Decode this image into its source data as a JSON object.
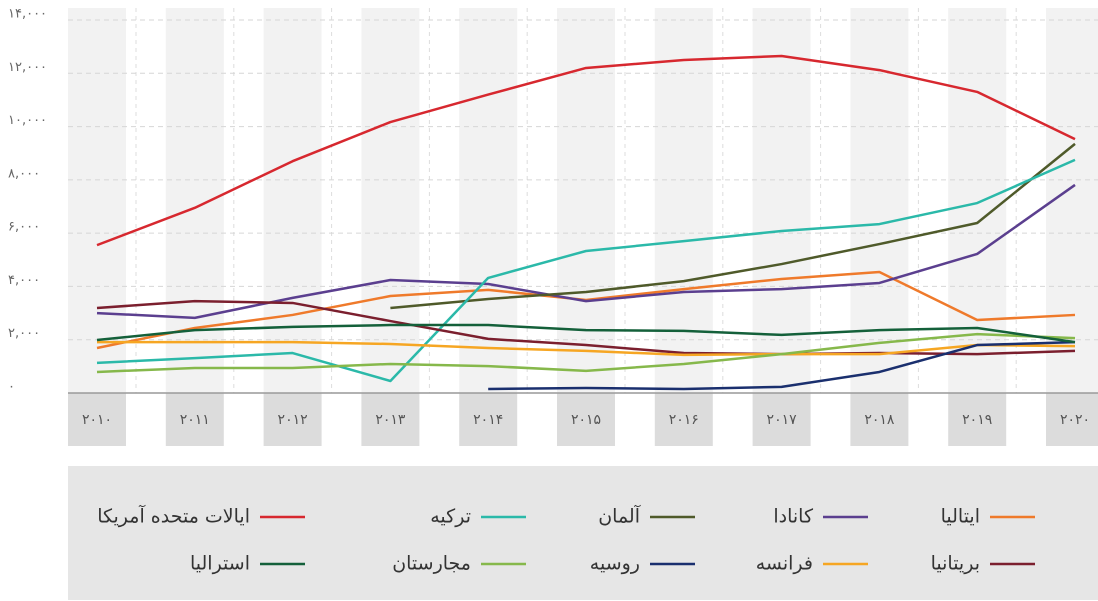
{
  "chart_data": {
    "type": "line",
    "categories": [
      "۲۰۱۰",
      "۲۰۱۱",
      "۲۰۱۲",
      "۲۰۱۳",
      "۲۰۱۴",
      "۲۰۱۵",
      "۲۰۱۶",
      "۲۰۱۷",
      "۲۰۱۸",
      "۲۰۱۹",
      "۲۰۲۰"
    ],
    "ylim": [
      0,
      14000
    ],
    "yticks": [
      {
        "value": 0,
        "label": "۰"
      },
      {
        "value": 2000,
        "label": "۲,۰۰۰"
      },
      {
        "value": 4000,
        "label": "۴,۰۰۰"
      },
      {
        "value": 6000,
        "label": "۶,۰۰۰"
      },
      {
        "value": 8000,
        "label": "۸,۰۰۰"
      },
      {
        "value": 10000,
        "label": "۱۰,۰۰۰"
      },
      {
        "value": 12000,
        "label": "۱۲,۰۰۰"
      },
      {
        "value": 14000,
        "label": "۱۴,۰۰۰"
      }
    ],
    "grid": true,
    "series": [
      {
        "name": "ایتالیا",
        "color": "#ef7a2b",
        "values": [
          1690,
          2440,
          2930,
          3640,
          3870,
          3490,
          3900,
          4280,
          4540,
          2740,
          2930
        ]
      },
      {
        "name": "کانادا",
        "color": "#5b3f8f",
        "values": [
          3000,
          2820,
          3570,
          4240,
          4090,
          3450,
          3790,
          3900,
          4130,
          5220,
          7810
        ]
      },
      {
        "name": "آلمان",
        "color": "#4f5a2a",
        "values": [
          null,
          null,
          null,
          3190,
          3530,
          3790,
          4200,
          4840,
          5590,
          6380,
          9350
        ]
      },
      {
        "name": "ترکیه",
        "color": "#2bb9a9",
        "values": [
          1130,
          1310,
          1500,
          450,
          4320,
          5330,
          5700,
          6080,
          6340,
          7130,
          8750
        ]
      },
      {
        "name": "ایالات متحده آمریکا",
        "color": "#d7282f",
        "values": [
          5550,
          6950,
          8700,
          10170,
          11200,
          12200,
          12500,
          12650,
          12120,
          11300,
          9530
        ]
      },
      {
        "name": "بریتانیا",
        "color": "#7b1f2e",
        "values": [
          3190,
          3450,
          3380,
          2700,
          2030,
          1800,
          1500,
          1460,
          1500,
          1460,
          1580
        ]
      },
      {
        "name": "فرانسه",
        "color": "#f6a623",
        "values": [
          1910,
          1910,
          1910,
          1840,
          1690,
          1580,
          1430,
          1460,
          1460,
          1800,
          1760
        ]
      },
      {
        "name": "روسیه",
        "color": "#1a2f6e",
        "values": [
          null,
          null,
          null,
          null,
          150,
          190,
          150,
          230,
          790,
          1800,
          1910
        ]
      },
      {
        "name": "مجارستان",
        "color": "#86b84b",
        "values": [
          790,
          940,
          940,
          1090,
          1010,
          830,
          1090,
          1460,
          1880,
          2210,
          2060
        ]
      },
      {
        "name": "استرالیا",
        "color": "#14603a",
        "values": [
          1990,
          2360,
          2480,
          2550,
          2550,
          2360,
          2330,
          2180,
          2360,
          2440,
          1910
        ]
      }
    ]
  }
}
